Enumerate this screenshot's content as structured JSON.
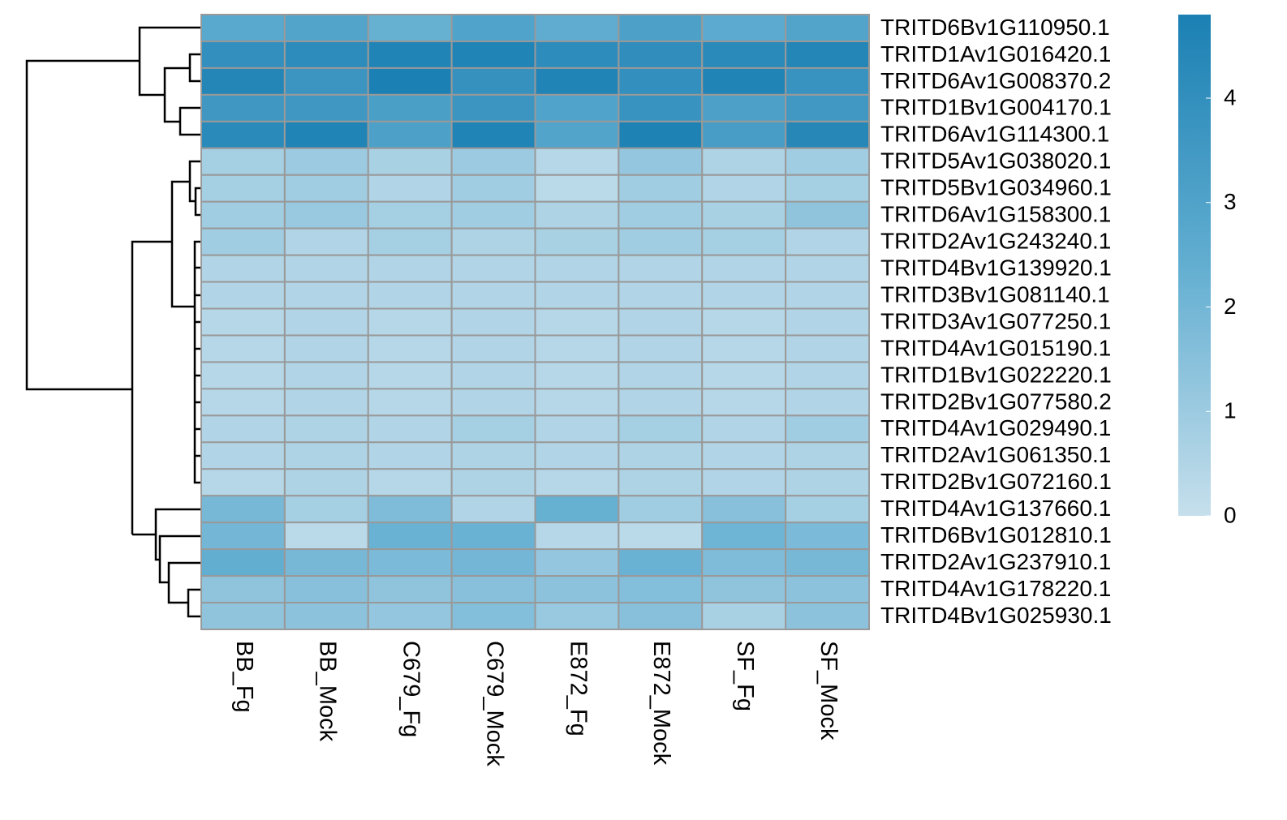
{
  "chart_data": {
    "type": "heatmap",
    "rows": [
      "TRITD6Bv1G110950.1",
      "TRITD1Av1G016420.1",
      "TRITD6Av1G008370.2",
      "TRITD1Bv1G004170.1",
      "TRITD6Av1G114300.1",
      "TRITD5Av1G038020.1",
      "TRITD5Bv1G034960.1",
      "TRITD6Av1G158300.1",
      "TRITD2Av1G243240.1",
      "TRITD4Bv1G139920.1",
      "TRITD3Bv1G081140.1",
      "TRITD3Av1G077250.1",
      "TRITD4Av1G015190.1",
      "TRITD1Bv1G022220.1",
      "TRITD2Bv1G077580.2",
      "TRITD4Av1G029490.1",
      "TRITD2Av1G061350.1",
      "TRITD2Bv1G072160.1",
      "TRITD4Av1G137660.1",
      "TRITD6Bv1G012810.1",
      "TRITD2Av1G237910.1",
      "TRITD4Av1G178220.1",
      "TRITD4Bv1G025930.1"
    ],
    "columns": [
      "BB_Fg",
      "BB_Mock",
      "C679_Fg",
      "C679_Mock",
      "E872_Fg",
      "E872_Mock",
      "SF_Fg",
      "SF_Mock"
    ],
    "values": [
      [
        2.7,
        2.9,
        2.3,
        3.0,
        2.5,
        3.1,
        2.6,
        2.9
      ],
      [
        4.0,
        4.2,
        4.6,
        4.6,
        4.2,
        4.1,
        4.3,
        4.5
      ],
      [
        4.5,
        3.7,
        4.8,
        3.9,
        4.6,
        4.0,
        4.6,
        3.8
      ],
      [
        3.6,
        3.6,
        3.2,
        3.7,
        3.0,
        3.8,
        3.1,
        3.5
      ],
      [
        4.3,
        4.6,
        3.1,
        4.6,
        2.9,
        4.7,
        3.3,
        4.4
      ],
      [
        0.8,
        1.0,
        0.7,
        1.0,
        0.4,
        1.2,
        0.6,
        0.9
      ],
      [
        0.8,
        0.9,
        0.5,
        0.9,
        0.3,
        0.9,
        0.5,
        0.8
      ],
      [
        0.9,
        1.1,
        0.8,
        0.9,
        0.6,
        0.9,
        0.7,
        1.3
      ],
      [
        0.9,
        0.5,
        0.8,
        0.6,
        0.7,
        0.9,
        0.8,
        0.5
      ],
      [
        0.5,
        0.5,
        0.5,
        0.5,
        0.5,
        0.5,
        0.5,
        0.5
      ],
      [
        0.5,
        0.5,
        0.5,
        0.5,
        0.5,
        0.5,
        0.5,
        0.5
      ],
      [
        0.4,
        0.5,
        0.4,
        0.5,
        0.4,
        0.5,
        0.4,
        0.5
      ],
      [
        0.4,
        0.5,
        0.4,
        0.5,
        0.4,
        0.5,
        0.4,
        0.5
      ],
      [
        0.4,
        0.5,
        0.4,
        0.5,
        0.4,
        0.5,
        0.4,
        0.5
      ],
      [
        0.4,
        0.5,
        0.4,
        0.5,
        0.4,
        0.5,
        0.4,
        0.5
      ],
      [
        0.5,
        0.6,
        0.5,
        0.8,
        0.5,
        0.8,
        0.5,
        0.9
      ],
      [
        0.5,
        0.6,
        0.5,
        0.6,
        0.5,
        0.6,
        0.5,
        0.6
      ],
      [
        0.4,
        0.6,
        0.4,
        0.6,
        0.4,
        0.6,
        0.5,
        0.6
      ],
      [
        1.9,
        0.8,
        1.7,
        0.5,
        2.3,
        0.9,
        1.5,
        0.8
      ],
      [
        2.0,
        0.3,
        2.2,
        2.2,
        0.4,
        0.3,
        2.1,
        1.8
      ],
      [
        2.4,
        1.9,
        1.8,
        2.0,
        1.2,
        2.2,
        1.7,
        1.9
      ],
      [
        1.3,
        1.5,
        1.3,
        1.5,
        1.4,
        1.6,
        1.3,
        1.4
      ],
      [
        1.3,
        1.4,
        1.2,
        1.6,
        1.1,
        1.5,
        0.7,
        1.4
      ]
    ],
    "zlim": [
      0,
      4.8
    ],
    "zticks": [
      0,
      1,
      2,
      3,
      4
    ],
    "colors": [
      "#c6dfec",
      "#62aed1",
      "#1b80b3"
    ]
  }
}
